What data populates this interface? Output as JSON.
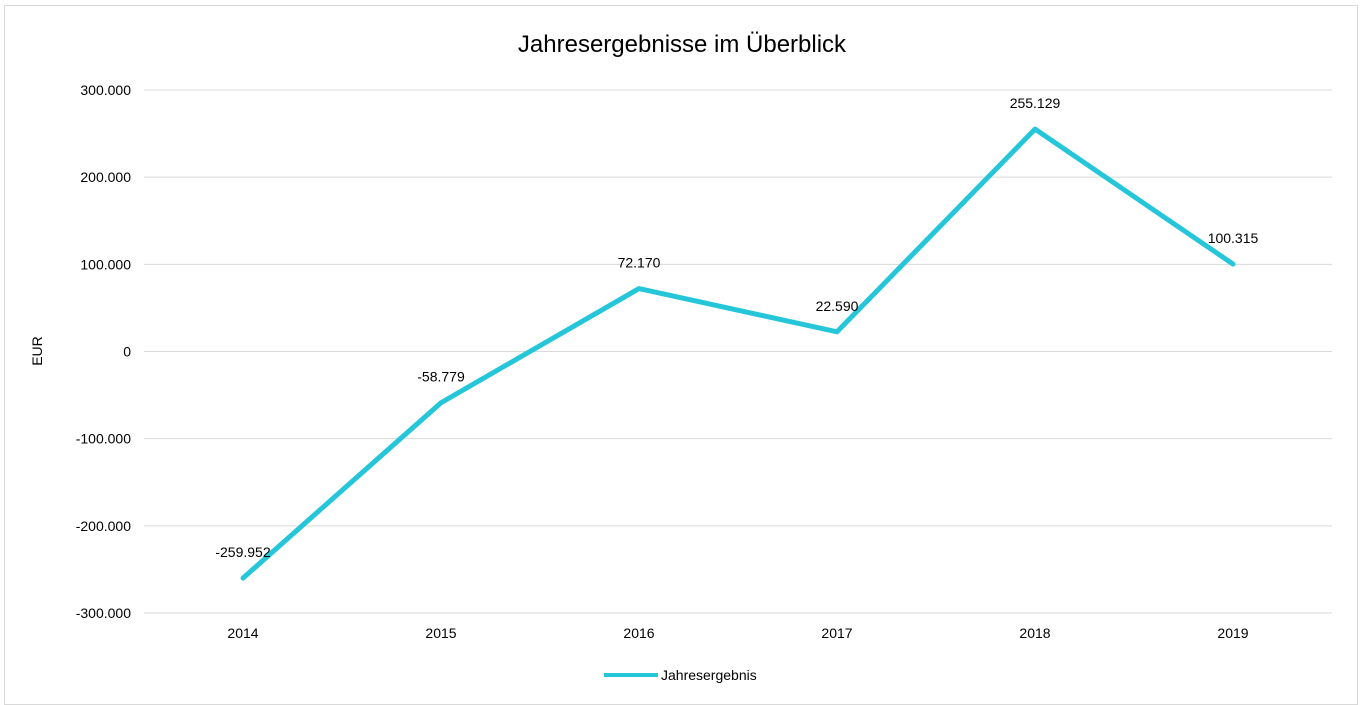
{
  "chart_data": {
    "type": "line",
    "title": "Jahresergebnisse im Überblick",
    "xlabel": "",
    "ylabel": "EUR",
    "categories": [
      "2014",
      "2015",
      "2016",
      "2017",
      "2018",
      "2019"
    ],
    "series": [
      {
        "name": "Jahresergebnis",
        "values": [
          -259952,
          -58779,
          72170,
          22590,
          255129,
          100315
        ],
        "labels": [
          "-259.952",
          "-58.779",
          "72.170",
          "22.590",
          "255.129",
          "100.315"
        ],
        "color": "#26c6da"
      }
    ],
    "ylim": [
      -300000,
      300000
    ],
    "yticks": [
      300000,
      200000,
      100000,
      0,
      -100000,
      -200000,
      -300000
    ],
    "ytick_labels": [
      "300.000",
      "200.000",
      "100.000",
      "0",
      "-100.000",
      "-200.000",
      "-300.000"
    ],
    "grid": true,
    "legend_position": "bottom"
  }
}
